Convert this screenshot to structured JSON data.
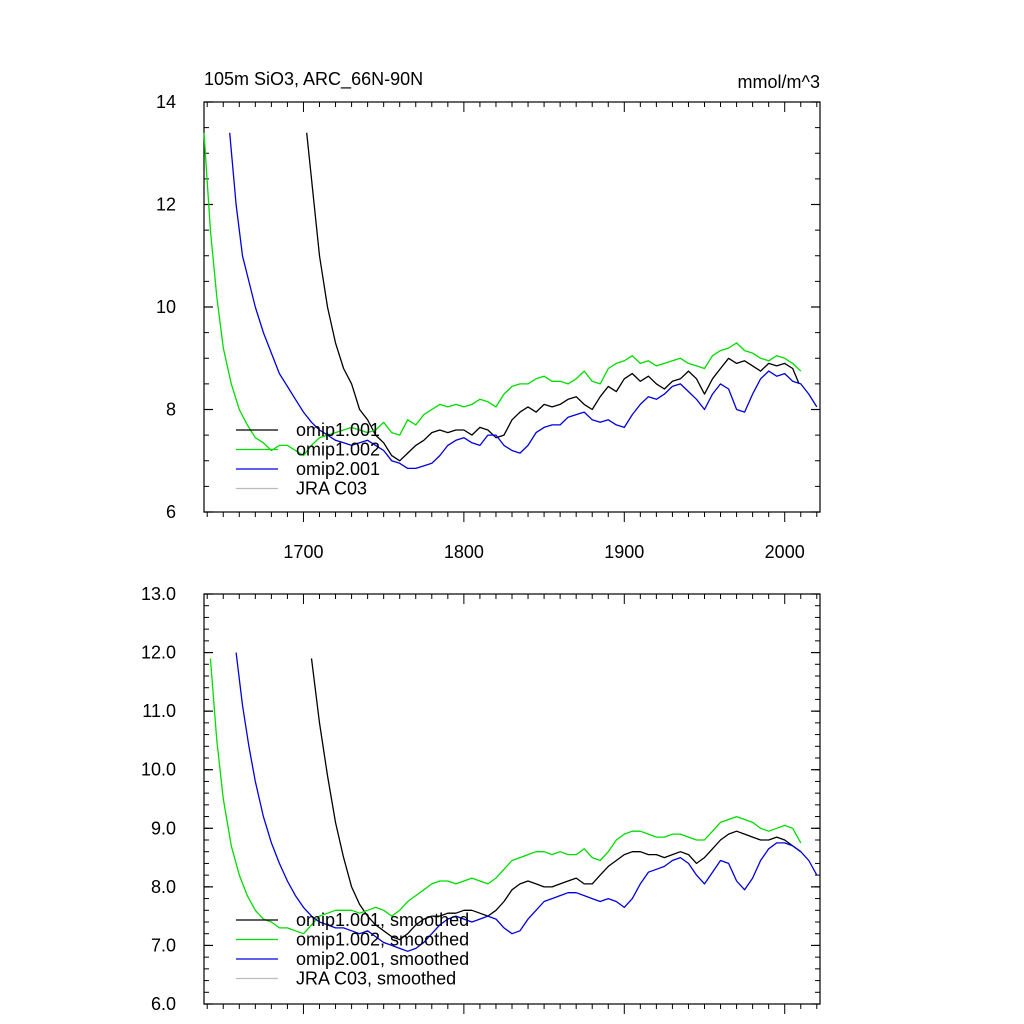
{
  "chart_data": [
    {
      "type": "line",
      "title": "105m SiO3, ARC_66N-90N",
      "units": "mmol/m^3",
      "xlim": [
        1638,
        2022
      ],
      "ylim": [
        6,
        14
      ],
      "xticks": [
        "1700",
        "1800",
        "1900",
        "2000"
      ],
      "yticks": [
        "6",
        "8",
        "10",
        "12",
        "14"
      ],
      "legend_position": "lower-left",
      "series": [
        {
          "name": "omip1.001",
          "color": "#000000",
          "x": [
            1702,
            1706,
            1710,
            1715,
            1720,
            1725,
            1730,
            1735,
            1740,
            1745,
            1750,
            1755,
            1760,
            1765,
            1770,
            1775,
            1780,
            1785,
            1790,
            1795,
            1800,
            1805,
            1810,
            1815,
            1820,
            1825,
            1830,
            1835,
            1840,
            1845,
            1850,
            1855,
            1860,
            1865,
            1870,
            1875,
            1880,
            1885,
            1890,
            1895,
            1900,
            1905,
            1910,
            1915,
            1920,
            1925,
            1930,
            1935,
            1940,
            1945,
            1950,
            1955,
            1960,
            1965,
            1970,
            1975,
            1980,
            1985,
            1990,
            1995,
            2000,
            2005,
            2009
          ],
          "values": [
            13.4,
            12.2,
            11.0,
            10.0,
            9.3,
            8.8,
            8.5,
            8.0,
            7.8,
            7.5,
            7.35,
            7.1,
            7.0,
            7.15,
            7.3,
            7.4,
            7.55,
            7.6,
            7.55,
            7.6,
            7.6,
            7.5,
            7.65,
            7.6,
            7.45,
            7.5,
            7.8,
            7.95,
            8.05,
            7.95,
            8.1,
            8.05,
            8.1,
            8.2,
            8.25,
            8.1,
            8.0,
            8.25,
            8.45,
            8.35,
            8.6,
            8.7,
            8.55,
            8.65,
            8.5,
            8.4,
            8.55,
            8.6,
            8.75,
            8.6,
            8.3,
            8.6,
            8.8,
            9.0,
            8.9,
            8.95,
            8.85,
            8.75,
            8.9,
            8.85,
            8.9,
            8.8,
            8.5
          ]
        },
        {
          "name": "omip1.002",
          "color": "#00dd00",
          "x": [
            1638,
            1642,
            1646,
            1650,
            1655,
            1660,
            1665,
            1670,
            1675,
            1680,
            1685,
            1690,
            1695,
            1700,
            1705,
            1710,
            1715,
            1720,
            1725,
            1730,
            1735,
            1740,
            1745,
            1750,
            1755,
            1760,
            1765,
            1770,
            1775,
            1780,
            1785,
            1790,
            1795,
            1800,
            1805,
            1810,
            1815,
            1820,
            1825,
            1830,
            1835,
            1840,
            1845,
            1850,
            1855,
            1860,
            1865,
            1870,
            1875,
            1880,
            1885,
            1890,
            1895,
            1900,
            1905,
            1910,
            1915,
            1920,
            1925,
            1930,
            1935,
            1940,
            1945,
            1950,
            1955,
            1960,
            1965,
            1970,
            1975,
            1980,
            1985,
            1990,
            1995,
            2000,
            2005,
            2010
          ],
          "values": [
            13.4,
            11.5,
            10.2,
            9.2,
            8.5,
            8.0,
            7.7,
            7.45,
            7.35,
            7.2,
            7.3,
            7.3,
            7.2,
            7.1,
            7.3,
            7.45,
            7.5,
            7.55,
            7.6,
            7.65,
            7.6,
            7.55,
            7.6,
            7.75,
            7.55,
            7.5,
            7.8,
            7.7,
            7.9,
            8.0,
            8.1,
            8.05,
            8.1,
            8.05,
            8.1,
            8.2,
            8.15,
            8.05,
            8.3,
            8.45,
            8.5,
            8.5,
            8.6,
            8.65,
            8.55,
            8.55,
            8.5,
            8.6,
            8.75,
            8.55,
            8.5,
            8.8,
            8.9,
            8.95,
            9.05,
            8.9,
            8.95,
            8.85,
            8.9,
            8.95,
            9.0,
            8.9,
            8.85,
            8.8,
            9.05,
            9.15,
            9.2,
            9.3,
            9.15,
            9.1,
            9.0,
            8.95,
            9.05,
            9.0,
            8.9,
            8.75
          ]
        },
        {
          "name": "omip2.001",
          "color": "#0000dd",
          "x": [
            1654,
            1658,
            1662,
            1666,
            1670,
            1675,
            1680,
            1685,
            1690,
            1695,
            1700,
            1705,
            1710,
            1715,
            1720,
            1725,
            1730,
            1735,
            1740,
            1745,
            1750,
            1755,
            1760,
            1765,
            1770,
            1775,
            1780,
            1785,
            1790,
            1795,
            1800,
            1805,
            1810,
            1815,
            1820,
            1825,
            1830,
            1835,
            1840,
            1845,
            1850,
            1855,
            1860,
            1865,
            1870,
            1875,
            1880,
            1885,
            1890,
            1895,
            1900,
            1905,
            1910,
            1915,
            1920,
            1925,
            1930,
            1935,
            1940,
            1945,
            1950,
            1955,
            1960,
            1965,
            1970,
            1975,
            1980,
            1985,
            1990,
            1995,
            2000,
            2005,
            2010,
            2015,
            2020
          ],
          "values": [
            13.4,
            12.0,
            11.0,
            10.5,
            10.0,
            9.5,
            9.1,
            8.7,
            8.45,
            8.2,
            7.95,
            7.75,
            7.6,
            7.5,
            7.4,
            7.35,
            7.3,
            7.35,
            7.4,
            7.3,
            7.2,
            7.0,
            6.95,
            6.85,
            6.85,
            6.9,
            6.95,
            7.1,
            7.3,
            7.4,
            7.45,
            7.35,
            7.3,
            7.5,
            7.5,
            7.3,
            7.2,
            7.15,
            7.3,
            7.55,
            7.65,
            7.7,
            7.7,
            7.85,
            7.9,
            7.95,
            7.8,
            7.75,
            7.8,
            7.7,
            7.65,
            7.9,
            8.1,
            8.25,
            8.2,
            8.3,
            8.45,
            8.5,
            8.35,
            8.2,
            8.0,
            8.3,
            8.5,
            8.4,
            8.0,
            7.95,
            8.3,
            8.6,
            8.75,
            8.65,
            8.7,
            8.55,
            8.5,
            8.3,
            8.05
          ]
        },
        {
          "name": "JRA C03",
          "color": "#bbbbbb",
          "x": [],
          "values": []
        }
      ]
    },
    {
      "type": "line",
      "title": "",
      "units": "",
      "xlim": [
        1638,
        2022
      ],
      "ylim": [
        6,
        13
      ],
      "xticks": [],
      "yticks": [
        "6.0",
        "7.0",
        "8.0",
        "9.0",
        "10.0",
        "11.0",
        "12.0",
        "13.0"
      ],
      "legend_position": "lower-left",
      "series": [
        {
          "name": "omip1.001, smoothed",
          "color": "#000000",
          "x": [
            1705,
            1710,
            1715,
            1720,
            1725,
            1730,
            1735,
            1740,
            1745,
            1750,
            1755,
            1760,
            1765,
            1770,
            1775,
            1780,
            1785,
            1790,
            1795,
            1800,
            1805,
            1810,
            1815,
            1820,
            1825,
            1830,
            1835,
            1840,
            1845,
            1850,
            1855,
            1860,
            1865,
            1870,
            1875,
            1880,
            1885,
            1890,
            1895,
            1900,
            1905,
            1910,
            1915,
            1920,
            1925,
            1930,
            1935,
            1940,
            1945,
            1950,
            1955,
            1960,
            1965,
            1970,
            1975,
            1980,
            1985,
            1990,
            1995,
            2000,
            2005,
            2010
          ],
          "values": [
            11.9,
            10.8,
            9.9,
            9.1,
            8.5,
            8.0,
            7.7,
            7.5,
            7.35,
            7.25,
            7.15,
            7.1,
            7.2,
            7.35,
            7.45,
            7.5,
            7.5,
            7.55,
            7.55,
            7.6,
            7.6,
            7.55,
            7.5,
            7.6,
            7.75,
            7.95,
            8.05,
            8.1,
            8.05,
            8.0,
            8.0,
            8.05,
            8.1,
            8.15,
            8.05,
            8.05,
            8.2,
            8.35,
            8.45,
            8.55,
            8.6,
            8.6,
            8.55,
            8.55,
            8.5,
            8.55,
            8.6,
            8.55,
            8.4,
            8.5,
            8.65,
            8.8,
            8.9,
            8.95,
            8.9,
            8.85,
            8.8,
            8.8,
            8.85,
            8.8,
            8.7,
            8.6
          ]
        },
        {
          "name": "omip1.002, smoothed",
          "color": "#00dd00",
          "x": [
            1642,
            1646,
            1650,
            1655,
            1660,
            1665,
            1670,
            1675,
            1680,
            1685,
            1690,
            1695,
            1700,
            1705,
            1710,
            1715,
            1720,
            1725,
            1730,
            1735,
            1740,
            1745,
            1750,
            1755,
            1760,
            1765,
            1770,
            1775,
            1780,
            1785,
            1790,
            1795,
            1800,
            1805,
            1810,
            1815,
            1820,
            1825,
            1830,
            1835,
            1840,
            1845,
            1850,
            1855,
            1860,
            1865,
            1870,
            1875,
            1880,
            1885,
            1890,
            1895,
            1900,
            1905,
            1910,
            1915,
            1920,
            1925,
            1930,
            1935,
            1940,
            1945,
            1950,
            1955,
            1960,
            1965,
            1970,
            1975,
            1980,
            1985,
            1990,
            1995,
            2000,
            2005,
            2010
          ],
          "values": [
            11.9,
            10.5,
            9.5,
            8.7,
            8.2,
            7.85,
            7.6,
            7.45,
            7.4,
            7.3,
            7.3,
            7.25,
            7.2,
            7.35,
            7.5,
            7.55,
            7.6,
            7.6,
            7.6,
            7.55,
            7.6,
            7.65,
            7.6,
            7.5,
            7.6,
            7.75,
            7.85,
            7.95,
            8.05,
            8.1,
            8.1,
            8.05,
            8.1,
            8.15,
            8.1,
            8.05,
            8.15,
            8.3,
            8.45,
            8.5,
            8.55,
            8.6,
            8.6,
            8.55,
            8.6,
            8.55,
            8.55,
            8.65,
            8.5,
            8.45,
            8.6,
            8.8,
            8.9,
            8.95,
            8.95,
            8.9,
            8.85,
            8.85,
            8.9,
            8.9,
            8.85,
            8.8,
            8.8,
            8.95,
            9.1,
            9.15,
            9.2,
            9.15,
            9.1,
            9.0,
            8.95,
            9.0,
            9.05,
            9.0,
            8.75
          ]
        },
        {
          "name": "omip2.001, smoothed",
          "color": "#0000dd",
          "x": [
            1658,
            1662,
            1666,
            1670,
            1675,
            1680,
            1685,
            1690,
            1695,
            1700,
            1705,
            1710,
            1715,
            1720,
            1725,
            1730,
            1735,
            1740,
            1745,
            1750,
            1755,
            1760,
            1765,
            1770,
            1775,
            1780,
            1785,
            1790,
            1795,
            1800,
            1805,
            1810,
            1815,
            1820,
            1825,
            1830,
            1835,
            1840,
            1845,
            1850,
            1855,
            1860,
            1865,
            1870,
            1875,
            1880,
            1885,
            1890,
            1895,
            1900,
            1905,
            1910,
            1915,
            1920,
            1925,
            1930,
            1935,
            1940,
            1945,
            1950,
            1955,
            1960,
            1965,
            1970,
            1975,
            1980,
            1985,
            1990,
            1995,
            2000,
            2005,
            2010,
            2015,
            2020
          ],
          "values": [
            12.0,
            11.1,
            10.4,
            9.8,
            9.2,
            8.75,
            8.4,
            8.1,
            7.85,
            7.65,
            7.5,
            7.4,
            7.35,
            7.3,
            7.3,
            7.25,
            7.2,
            7.25,
            7.15,
            7.05,
            7.0,
            6.95,
            6.9,
            6.95,
            7.05,
            7.2,
            7.35,
            7.45,
            7.5,
            7.45,
            7.4,
            7.45,
            7.5,
            7.45,
            7.3,
            7.2,
            7.25,
            7.45,
            7.6,
            7.75,
            7.8,
            7.85,
            7.9,
            7.9,
            7.85,
            7.8,
            7.75,
            7.8,
            7.75,
            7.65,
            7.8,
            8.05,
            8.25,
            8.3,
            8.35,
            8.45,
            8.5,
            8.4,
            8.2,
            8.05,
            8.25,
            8.45,
            8.4,
            8.1,
            7.95,
            8.15,
            8.45,
            8.65,
            8.75,
            8.75,
            8.7,
            8.6,
            8.45,
            8.2
          ]
        },
        {
          "name": "JRA C03, smoothed",
          "color": "#bbbbbb",
          "x": [],
          "values": []
        }
      ]
    }
  ]
}
